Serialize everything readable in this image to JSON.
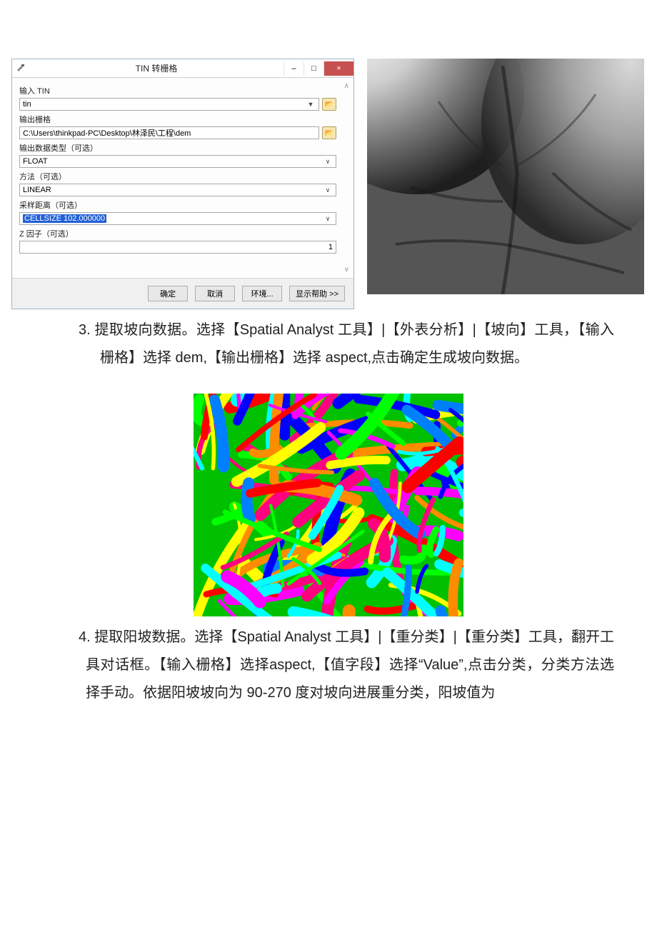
{
  "dialog": {
    "title": "TIN 转栅格",
    "labels": {
      "input_tin": "输入 TIN",
      "output_raster": "输出栅格",
      "output_type": "输出数据类型（可选）",
      "method": "方法（可选）",
      "sample_dist": "采样距离（可选）",
      "z_factor": "Z 因子（可选）"
    },
    "values": {
      "input_tin": "tin",
      "output_raster": "C:\\Users\\thinkpad-PC\\Desktop\\林泽民\\工程\\dem",
      "output_type": "FLOAT",
      "method": "LINEAR",
      "sample_dist": "CELLSIZE 102.000000",
      "z_factor": "1"
    },
    "buttons": {
      "ok": "确定",
      "cancel": "取消",
      "env": "环境...",
      "help": "显示帮助 >>"
    },
    "win": {
      "min": "–",
      "max": "□",
      "close": "×"
    }
  },
  "para3": {
    "num": "3.",
    "text": "提取坡向数据。选择【Spatial Analyst 工具】|【外表分析】|【坡向】工具，【输入栅格】选择 dem,【输出栅格】选择 aspect,点击确定生成坡向数据。"
  },
  "para4": {
    "num": "4.",
    "text": "提取阳坡数据。选择【Spatial Analyst 工具】|【重分类】|【重分类】工具，翻开工具对话框。【输入栅格】选择aspect,【值字段】选择“Value”,点击分类，分类方法选择手动。依据阳坡坡向为 90-270 度对坡向进展重分类，阳坡值为"
  },
  "aspect_colors": [
    "#ff0000",
    "#ff8c00",
    "#ffff00",
    "#00ff00",
    "#00ffff",
    "#0080ff",
    "#0000ff",
    "#ff00ff",
    "#ff0080"
  ]
}
